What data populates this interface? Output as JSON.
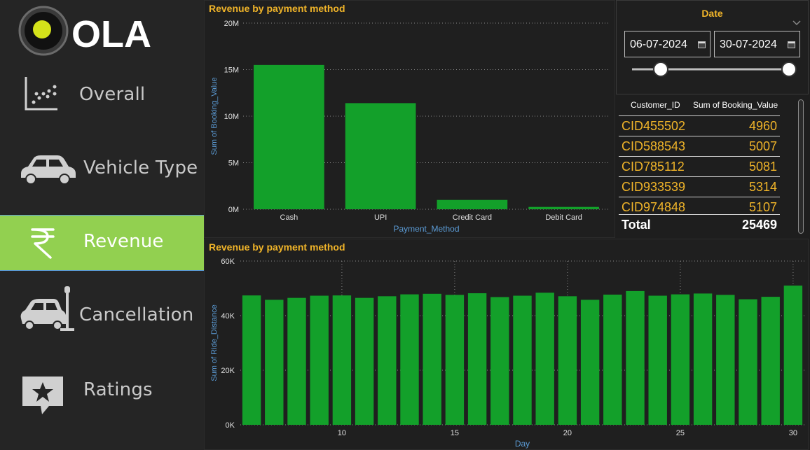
{
  "brand": {
    "name": "OLA"
  },
  "sidebar": {
    "items": [
      {
        "label": "Overall",
        "icon": "scatter-chart-icon"
      },
      {
        "label": "Vehicle Type",
        "icon": "car-icon"
      },
      {
        "label": "Revenue",
        "icon": "rupee-icon",
        "active": true
      },
      {
        "label": "Cancellation",
        "icon": "car-crash-icon"
      },
      {
        "label": "Ratings",
        "icon": "star-comment-icon"
      }
    ]
  },
  "colors": {
    "accent": "#f0b429",
    "bar": "#13a02a",
    "active_nav": "#92d050",
    "axis_label": "#5b9bd5"
  },
  "date_slicer": {
    "title": "Date",
    "start": "06-07-2024",
    "end": "30-07-2024"
  },
  "customer_table": {
    "headers": [
      "Customer_ID",
      "Sum of Booking_Value"
    ],
    "rows": [
      [
        "CID455502",
        "4960"
      ],
      [
        "CID588543",
        "5007"
      ],
      [
        "CID785112",
        "5081"
      ],
      [
        "CID933539",
        "5314"
      ],
      [
        "CID974848",
        "5107"
      ]
    ],
    "total_label": "Total",
    "total_value": "25469"
  },
  "chart_data": [
    {
      "type": "bar",
      "title": "Revenue by payment method",
      "xlabel": "Payment_Method",
      "ylabel": "Sum of Booking_Value",
      "categories": [
        "Cash",
        "UPI",
        "Credit Card",
        "Debit Card"
      ],
      "values": [
        15500000,
        11400000,
        1000000,
        250000
      ],
      "ylim": [
        0,
        20000000
      ],
      "yticks": [
        0,
        5000000,
        10000000,
        15000000,
        20000000
      ],
      "ytick_labels": [
        "0M",
        "5M",
        "10M",
        "15M",
        "20M"
      ],
      "grid": true
    },
    {
      "type": "bar",
      "title": "Revenue by payment method",
      "xlabel": "Day",
      "ylabel": "Sum of Ride_Distance",
      "x": [
        6,
        7,
        8,
        9,
        10,
        11,
        12,
        13,
        14,
        15,
        16,
        17,
        18,
        19,
        20,
        21,
        22,
        23,
        24,
        25,
        26,
        27,
        28,
        29,
        30
      ],
      "values": [
        47400,
        45800,
        46500,
        47300,
        47400,
        46500,
        47100,
        47800,
        48000,
        47600,
        48200,
        46800,
        47300,
        48400,
        47100,
        45800,
        47700,
        49000,
        47300,
        47800,
        48100,
        47600,
        46000,
        46900,
        51000
      ],
      "ylim": [
        0,
        60000
      ],
      "yticks": [
        0,
        20000,
        40000,
        60000
      ],
      "ytick_labels": [
        "0K",
        "20K",
        "40K",
        "60K"
      ],
      "xticks": [
        10,
        15,
        20,
        25,
        30
      ],
      "grid": true
    }
  ]
}
